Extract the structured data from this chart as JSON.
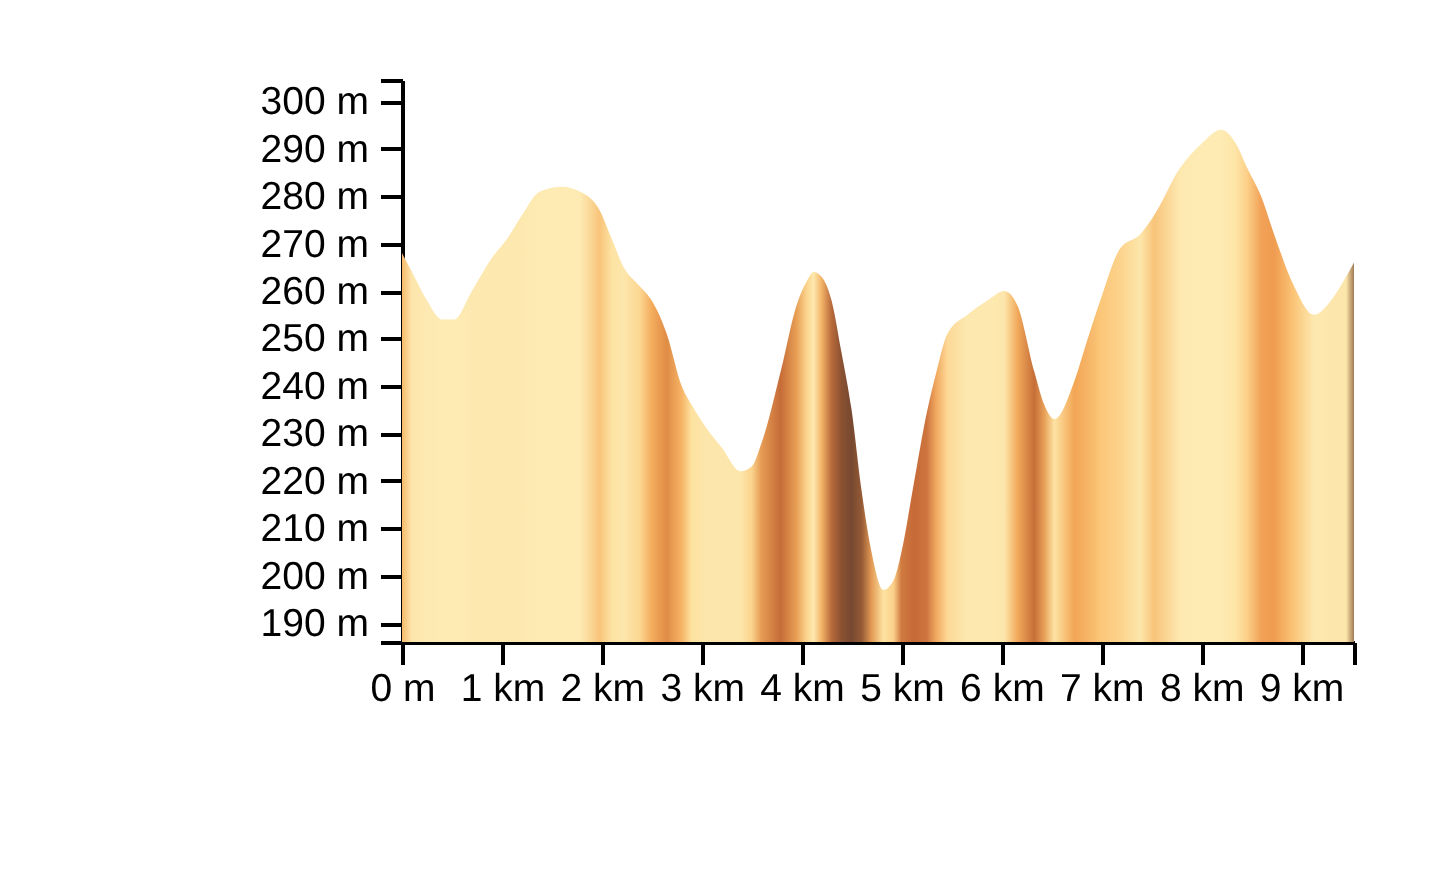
{
  "chart_data": {
    "type": "area",
    "x": [
      0.0,
      0.1,
      0.25,
      0.4,
      0.52,
      0.7,
      0.9,
      1.05,
      1.2,
      1.38,
      1.6,
      1.78,
      1.98,
      2.1,
      2.22,
      2.38,
      2.5,
      2.65,
      2.8,
      2.9,
      3.05,
      3.2,
      3.39,
      3.5,
      3.6,
      3.79,
      3.95,
      4.05,
      4.12,
      4.2,
      4.3,
      4.4,
      4.5,
      4.6,
      4.7,
      4.82,
      4.92,
      5.0,
      5.12,
      5.25,
      5.35,
      5.46,
      5.66,
      5.86,
      6.03,
      6.16,
      6.33,
      6.43,
      6.53,
      6.73,
      6.85,
      6.99,
      7.19,
      7.39,
      7.53,
      7.79,
      8.0,
      8.2,
      8.35,
      8.46,
      8.6,
      8.73,
      8.93,
      9.13,
      9.3,
      9.45,
      9.53
    ],
    "values": [
      268,
      264,
      258,
      254,
      254,
      260,
      267,
      271,
      276,
      281,
      282,
      281,
      277,
      271,
      265,
      261,
      258,
      251,
      240,
      236,
      231,
      227,
      222,
      223,
      228,
      243,
      257,
      262,
      264,
      263,
      258,
      247,
      235,
      218,
      205,
      197,
      199,
      205,
      219,
      234,
      243,
      251,
      255,
      258,
      260,
      257,
      243,
      236,
      233,
      241,
      249,
      258,
      269,
      272,
      276,
      286,
      291,
      294,
      291,
      286,
      280,
      272,
      261,
      255,
      258,
      263,
      266
    ],
    "colors": [
      "#f6b96a",
      "#fde6ac",
      "#fde9b2",
      "#fdebb3",
      "#fdebb3",
      "#fde9b0",
      "#fde9b0",
      "#fde9b0",
      "#fde9b0",
      "#fdebb3",
      "#fdebb3",
      "#fdebb3",
      "#f8c47a",
      "#fde3a3",
      "#fde6ab",
      "#fcd792",
      "#f4ac5c",
      "#e08c46",
      "#f6b466",
      "#fde2a0",
      "#fde6ab",
      "#fde6ab",
      "#fde6ab",
      "#fbd38c",
      "#e59a52",
      "#c66c38",
      "#e8a055",
      "#fbd48e",
      "#fde8ae",
      "#f4b468",
      "#b86a3a",
      "#8a5232",
      "#774830",
      "#945a36",
      "#e39a54",
      "#fde3a2",
      "#fbd08a",
      "#d07a40",
      "#c66a38",
      "#cc743e",
      "#f2aa60",
      "#fcd896",
      "#fde9b0",
      "#fde9b0",
      "#fde6ab",
      "#f2aa5c",
      "#c66e38",
      "#e8a058",
      "#fde3a3",
      "#f3a655",
      "#f6b264",
      "#fbc678",
      "#fcd38c",
      "#fde6ab",
      "#f8c47a",
      "#fde9b0",
      "#fdebb3",
      "#fdebb3",
      "#fde4a6",
      "#fccf88",
      "#f2a258",
      "#ef9c50",
      "#fbc679",
      "#fde9b0",
      "#fde6ab",
      "#fde6ab",
      "#a07a55"
    ],
    "xlim": [
      0,
      9.53
    ],
    "ylim": [
      186,
      304.5
    ],
    "xticks": [
      {
        "value": 0,
        "label": "0 m"
      },
      {
        "value": 1,
        "label": "1 km"
      },
      {
        "value": 2,
        "label": "2 km"
      },
      {
        "value": 3,
        "label": "3 km"
      },
      {
        "value": 4,
        "label": "4 km"
      },
      {
        "value": 5,
        "label": "5 km"
      },
      {
        "value": 6,
        "label": "6 km"
      },
      {
        "value": 7,
        "label": "7 km"
      },
      {
        "value": 8,
        "label": "8 km"
      },
      {
        "value": 9,
        "label": "9 km"
      },
      {
        "value": 9.53,
        "label": null
      }
    ],
    "yticks": [
      {
        "value": 186,
        "label": null
      },
      {
        "value": 190,
        "label": "190 m"
      },
      {
        "value": 200,
        "label": "200 m"
      },
      {
        "value": 210,
        "label": "210 m"
      },
      {
        "value": 220,
        "label": "220 m"
      },
      {
        "value": 230,
        "label": "230 m"
      },
      {
        "value": 240,
        "label": "240 m"
      },
      {
        "value": 250,
        "label": "250 m"
      },
      {
        "value": 260,
        "label": "260 m"
      },
      {
        "value": 270,
        "label": "270 m"
      },
      {
        "value": 280,
        "label": "280 m"
      },
      {
        "value": 290,
        "label": "290 m"
      },
      {
        "value": 300,
        "label": "300 m"
      },
      {
        "value": 304.5,
        "label": null
      }
    ],
    "grid": false
  }
}
